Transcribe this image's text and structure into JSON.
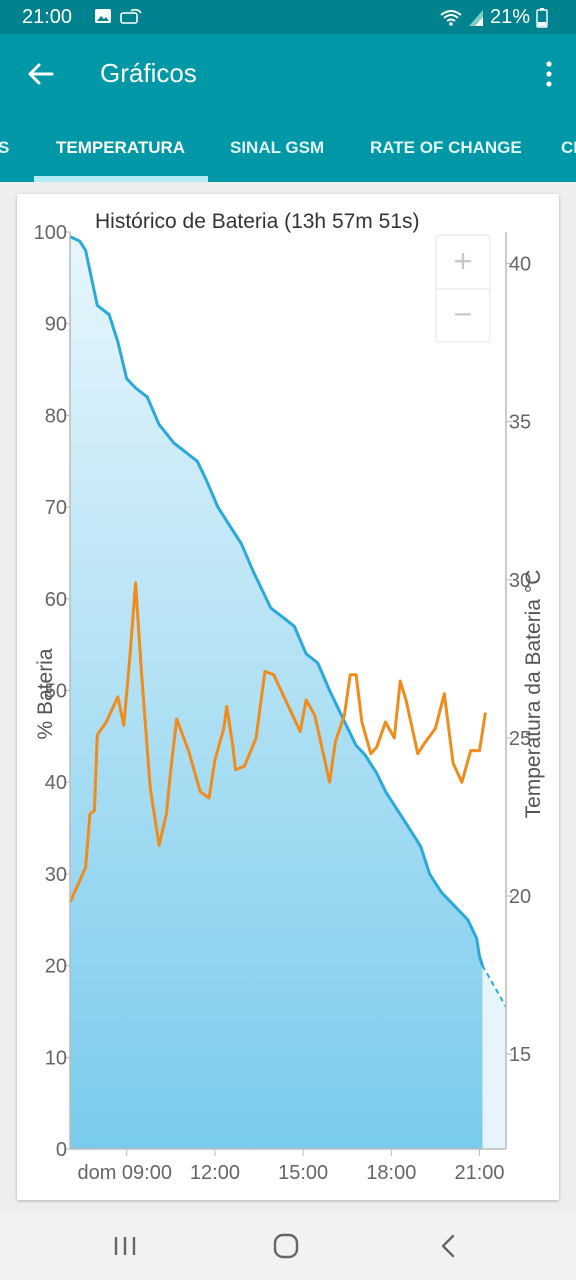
{
  "status_bar": {
    "time": "21:00",
    "battery_percent": "21%",
    "icons": [
      "image-icon",
      "notification-icon",
      "wifi-icon",
      "signal-icon",
      "battery-icon"
    ]
  },
  "app_bar": {
    "title": "Gráficos",
    "back_icon": "arrow-left-icon",
    "menu_icon": "more-vert-icon"
  },
  "tabs": [
    {
      "label": "S",
      "active": false
    },
    {
      "label": "TEMPERATURA",
      "active": true
    },
    {
      "label": "SINAL GSM",
      "active": false
    },
    {
      "label": "RATE OF CHANGE",
      "active": false
    },
    {
      "label": "CI",
      "active": false
    }
  ],
  "zoom": {
    "in_label": "+",
    "out_label": "−"
  },
  "chart_data": {
    "type": "area",
    "title": "Histórico de Bateria (13h 57m 51s)",
    "ylabel": "% Bateria",
    "y2label": "Temperatura da Bateria °C",
    "ylim": [
      0,
      100
    ],
    "y2lim": [
      12,
      41
    ],
    "y_ticks": [
      "0",
      "10",
      "20",
      "30",
      "40",
      "50",
      "60",
      "70",
      "80",
      "90",
      "100"
    ],
    "y2_ticks": [
      "15",
      "20",
      "25",
      "30",
      "35",
      "40"
    ],
    "x_ticks": [
      "dom 09:00",
      "12:00",
      "15:00",
      "18:00",
      "21:00"
    ],
    "x_range_hours": [
      7.07,
      21.9
    ],
    "colors": {
      "battery_line": "#29a9dc",
      "temperature_line": "#ef8c1c",
      "area_top": "#e8f6fc",
      "area_bottom": "#79cbec"
    },
    "series": [
      {
        "name": "% Bateria",
        "axis": "left",
        "points": [
          [
            7.07,
            99.5
          ],
          [
            7.4,
            99
          ],
          [
            7.6,
            98
          ],
          [
            8.0,
            92
          ],
          [
            8.4,
            91
          ],
          [
            8.7,
            88
          ],
          [
            9.0,
            84
          ],
          [
            9.3,
            83
          ],
          [
            9.7,
            82
          ],
          [
            10.1,
            79
          ],
          [
            10.6,
            77
          ],
          [
            11.0,
            76
          ],
          [
            11.4,
            75
          ],
          [
            11.7,
            73
          ],
          [
            12.1,
            70
          ],
          [
            12.5,
            68
          ],
          [
            12.9,
            66
          ],
          [
            13.3,
            63
          ],
          [
            13.6,
            61
          ],
          [
            13.9,
            59
          ],
          [
            14.3,
            58
          ],
          [
            14.7,
            57
          ],
          [
            15.1,
            54
          ],
          [
            15.5,
            53
          ],
          [
            15.9,
            50
          ],
          [
            16.2,
            48
          ],
          [
            16.5,
            46
          ],
          [
            16.8,
            44
          ],
          [
            17.1,
            43
          ],
          [
            17.5,
            41
          ],
          [
            17.8,
            39
          ],
          [
            18.2,
            37
          ],
          [
            18.6,
            35
          ],
          [
            19.0,
            33
          ],
          [
            19.3,
            30
          ],
          [
            19.7,
            28
          ],
          [
            20.0,
            27
          ],
          [
            20.3,
            26
          ],
          [
            20.6,
            25
          ],
          [
            20.9,
            23
          ],
          [
            21.0,
            21
          ],
          [
            21.1,
            20
          ]
        ],
        "projection": [
          [
            21.1,
            20
          ],
          [
            21.9,
            15.5
          ]
        ]
      },
      {
        "name": "Temperatura da Bateria °C",
        "axis": "right",
        "points": [
          [
            7.07,
            19.8
          ],
          [
            7.6,
            20.9
          ],
          [
            7.75,
            22.6
          ],
          [
            7.9,
            22.7
          ],
          [
            8.0,
            25.1
          ],
          [
            8.3,
            25.5
          ],
          [
            8.7,
            26.3
          ],
          [
            8.9,
            25.4
          ],
          [
            9.1,
            27.5
          ],
          [
            9.3,
            29.9
          ],
          [
            9.5,
            27.1
          ],
          [
            9.8,
            23.4
          ],
          [
            10.1,
            21.6
          ],
          [
            10.35,
            22.6
          ],
          [
            10.5,
            24.0
          ],
          [
            10.7,
            25.6
          ],
          [
            11.1,
            24.6
          ],
          [
            11.5,
            23.3
          ],
          [
            11.8,
            23.1
          ],
          [
            12.0,
            24.3
          ],
          [
            12.3,
            25.3
          ],
          [
            12.4,
            26.0
          ],
          [
            12.6,
            24.8
          ],
          [
            12.7,
            24.0
          ],
          [
            13.0,
            24.1
          ],
          [
            13.4,
            25.0
          ],
          [
            13.7,
            27.1
          ],
          [
            14.0,
            27.0
          ],
          [
            14.4,
            26.2
          ],
          [
            14.9,
            25.2
          ],
          [
            15.1,
            26.2
          ],
          [
            15.4,
            25.7
          ],
          [
            15.9,
            23.6
          ],
          [
            16.1,
            24.9
          ],
          [
            16.4,
            25.7
          ],
          [
            16.6,
            27.0
          ],
          [
            16.8,
            27.0
          ],
          [
            17.0,
            25.5
          ],
          [
            17.3,
            24.5
          ],
          [
            17.5,
            24.7
          ],
          [
            17.8,
            25.5
          ],
          [
            18.1,
            25.0
          ],
          [
            18.3,
            26.8
          ],
          [
            18.5,
            26.2
          ],
          [
            18.9,
            24.5
          ],
          [
            19.1,
            24.8
          ],
          [
            19.5,
            25.3
          ],
          [
            19.8,
            26.4
          ],
          [
            20.1,
            24.2
          ],
          [
            20.4,
            23.6
          ],
          [
            20.7,
            24.6
          ],
          [
            21.0,
            24.6
          ],
          [
            21.2,
            25.8
          ]
        ]
      }
    ]
  }
}
